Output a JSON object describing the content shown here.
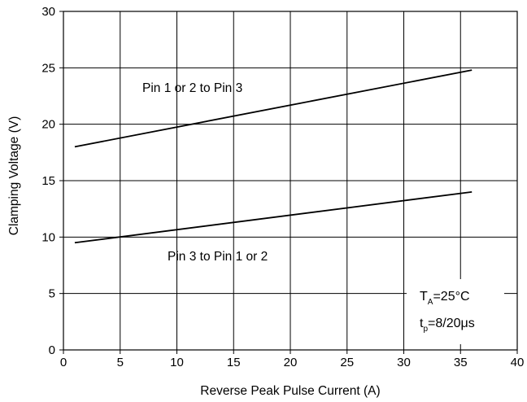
{
  "chart_data": {
    "type": "line",
    "title": "",
    "xlabel": "Reverse Peak Pulse Current (A)",
    "ylabel": "Clamping Voltage (V)",
    "xlim": [
      0,
      40
    ],
    "ylim": [
      0,
      30
    ],
    "xticks": [
      0,
      5,
      10,
      15,
      20,
      25,
      30,
      35,
      40
    ],
    "yticks": [
      0,
      5,
      10,
      15,
      20,
      25,
      30
    ],
    "grid": true,
    "series": [
      {
        "name": "Pin 1 or 2 to Pin 3",
        "x": [
          1,
          36
        ],
        "y": [
          18.0,
          24.8
        ],
        "color": "#000000"
      },
      {
        "name": "Pin 3 to Pin 1 or 2",
        "x": [
          1,
          36
        ],
        "y": [
          9.5,
          14.0
        ],
        "color": "#000000"
      }
    ],
    "annotations": [
      {
        "text": "Pin 1 or 2 to Pin 3"
      },
      {
        "text": "Pin 3 to Pin 1 or 2"
      }
    ],
    "conditions": {
      "line1": {
        "main": "T",
        "sub": "A",
        "rest": "=25°C"
      },
      "line2": {
        "main": "t",
        "sub": "p",
        "rest": "=8/20μs"
      }
    }
  }
}
